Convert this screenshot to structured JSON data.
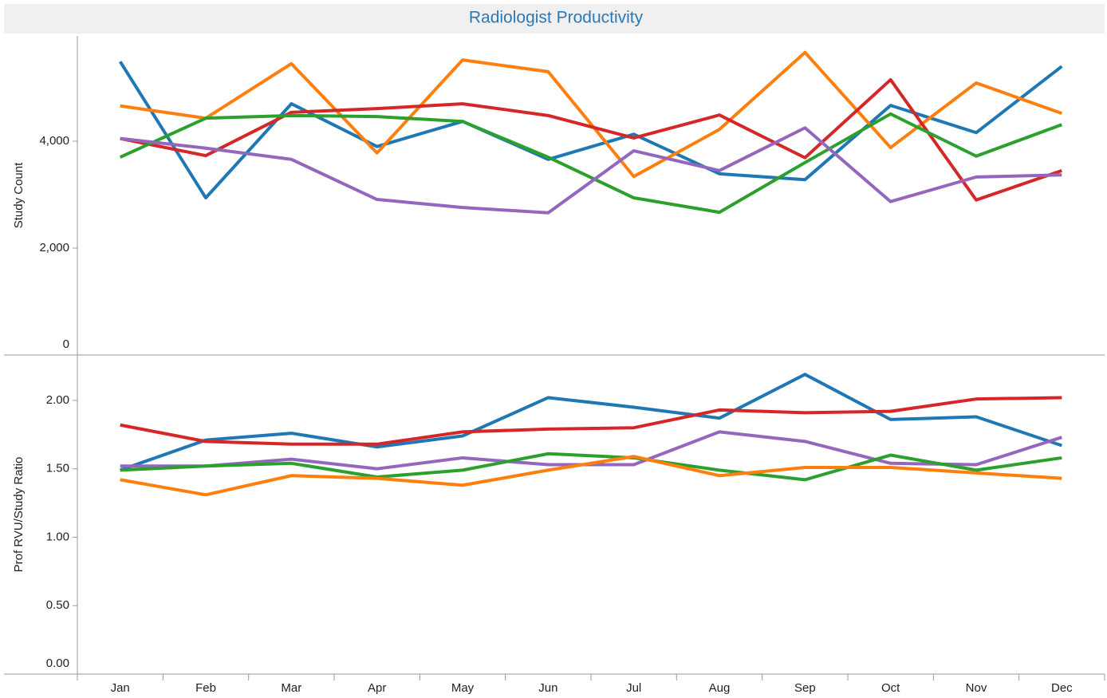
{
  "chart_data": [
    {
      "type": "line",
      "title": "Radiologist Productivity",
      "ylabel": "Study Count",
      "ylim": [
        0,
        5970
      ],
      "yticks": [
        0,
        {
          "value": 2000,
          "label": "2,000"
        },
        {
          "value": 4000,
          "label": "4,000"
        }
      ],
      "series": [
        {
          "color": "#1f77b4",
          "values": [
            5490,
            2940,
            4700,
            3900,
            4370,
            3660,
            4130,
            3390,
            3280,
            4670,
            4160,
            5400
          ]
        },
        {
          "color": "#ff7f0e",
          "values": [
            4660,
            4430,
            5450,
            3780,
            5520,
            5300,
            3340,
            4220,
            5660,
            3880,
            5090,
            4520
          ]
        },
        {
          "color": "#d62728",
          "values": [
            4050,
            3730,
            4540,
            4610,
            4700,
            4480,
            4060,
            4490,
            3690,
            5150,
            2900,
            3450
          ]
        },
        {
          "color": "#2ca02c",
          "values": [
            3700,
            4430,
            4480,
            4460,
            4370,
            3700,
            2940,
            2670,
            3600,
            4510,
            3720,
            4310
          ]
        },
        {
          "color": "#9467bd",
          "values": [
            4050,
            3870,
            3660,
            2910,
            2760,
            2660,
            3820,
            3450,
            4250,
            2870,
            3330,
            3370
          ]
        }
      ]
    },
    {
      "type": "line",
      "ylabel": "Prof RVU/Study Ratio",
      "categories": [
        "Jan",
        "Feb",
        "Mar",
        "Apr",
        "May",
        "Jun",
        "Jul",
        "Aug",
        "Sep",
        "Oct",
        "Nov",
        "Dec"
      ],
      "ylim": [
        0,
        2.32
      ],
      "yticks": [
        {
          "value": 0,
          "label": "0.00"
        },
        {
          "value": 0.5,
          "label": "0.50"
        },
        {
          "value": 1,
          "label": "1.00"
        },
        {
          "value": 1.5,
          "label": "1.50"
        },
        {
          "value": 2,
          "label": "2.00"
        }
      ],
      "series": [
        {
          "color": "#1f77b4",
          "values": [
            1.49,
            1.71,
            1.76,
            1.66,
            1.74,
            2.02,
            1.95,
            1.87,
            2.19,
            1.86,
            1.88,
            1.67
          ]
        },
        {
          "color": "#d62728",
          "values": [
            1.82,
            1.7,
            1.68,
            1.68,
            1.77,
            1.79,
            1.8,
            1.93,
            1.91,
            1.92,
            2.01,
            2.02
          ]
        },
        {
          "color": "#9467bd",
          "values": [
            1.52,
            1.52,
            1.57,
            1.5,
            1.58,
            1.53,
            1.53,
            1.77,
            1.7,
            1.54,
            1.53,
            1.73
          ]
        },
        {
          "color": "#2ca02c",
          "values": [
            1.49,
            1.52,
            1.54,
            1.44,
            1.49,
            1.61,
            1.58,
            1.49,
            1.42,
            1.6,
            1.49,
            1.58
          ]
        },
        {
          "color": "#ff7f0e",
          "values": [
            1.42,
            1.31,
            1.45,
            1.43,
            1.38,
            1.49,
            1.59,
            1.45,
            1.51,
            1.51,
            1.47,
            1.43
          ]
        }
      ]
    }
  ]
}
